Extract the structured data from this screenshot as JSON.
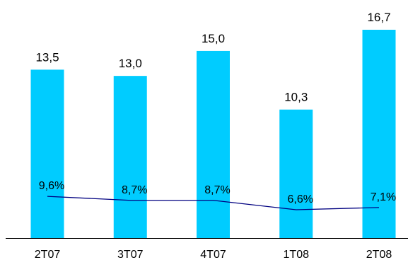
{
  "chart_data": {
    "type": "bar",
    "categories": [
      "2T07",
      "3T07",
      "4T07",
      "1T08",
      "2T08"
    ],
    "series": [
      {
        "type": "bar",
        "values": [
          13.5,
          13.0,
          15.0,
          10.3,
          16.7
        ],
        "labels": [
          "13,5",
          "13,0",
          "15,0",
          "10,3",
          "16,7"
        ],
        "color": "#00CCFF"
      },
      {
        "type": "line",
        "values": [
          9.6,
          8.7,
          8.7,
          6.6,
          7.1
        ],
        "labels": [
          "9,6%",
          "8,7%",
          "8,7%",
          "6,6%",
          "7,1%"
        ],
        "color": "#000080"
      }
    ],
    "title": "",
    "xlabel": "",
    "ylabel": "",
    "ylim": [
      0,
      18
    ],
    "grid": false,
    "legend": "none"
  }
}
